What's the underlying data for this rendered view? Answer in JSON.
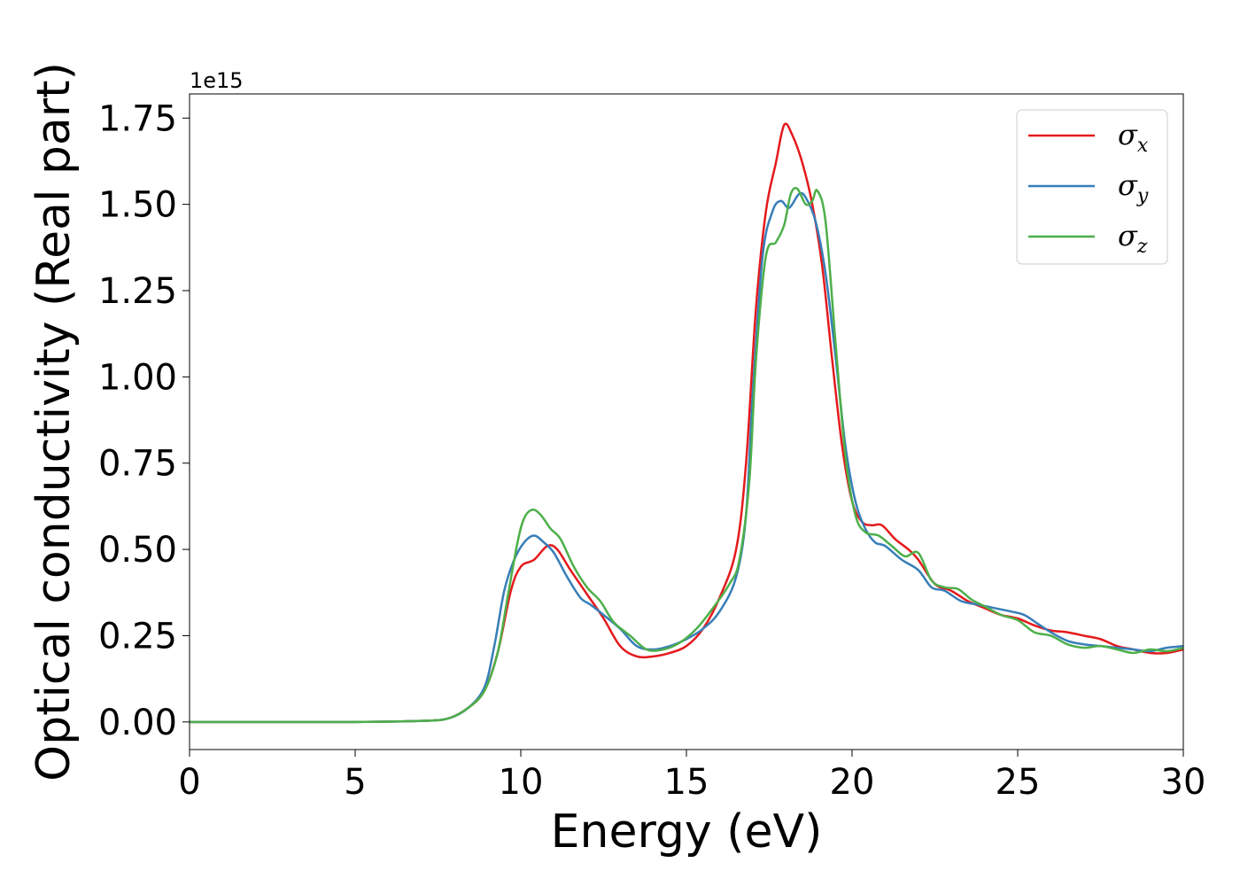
{
  "chart_data": {
    "type": "line",
    "title": "",
    "xlabel": "Energy (eV)",
    "ylabel": "Optical conductivity (Real part)",
    "y_offset_text": "1e15",
    "xlim": [
      0,
      30
    ],
    "ylim": [
      -0.08,
      1.82
    ],
    "x_ticks": [
      0,
      5,
      10,
      15,
      20,
      25,
      30
    ],
    "x_tick_labels": [
      "0",
      "5",
      "10",
      "15",
      "20",
      "25",
      "30"
    ],
    "y_ticks": [
      0,
      0.25,
      0.5,
      0.75,
      1.0,
      1.25,
      1.5,
      1.75
    ],
    "y_tick_labels": [
      "0.00",
      "0.25",
      "0.50",
      "0.75",
      "1.00",
      "1.25",
      "1.50",
      "1.75"
    ],
    "grid": false,
    "legend_position": "top-right",
    "series": [
      {
        "name": "σ",
        "subscript": "x",
        "color": "#e41a1c",
        "points": [
          [
            0,
            0
          ],
          [
            5,
            0
          ],
          [
            7,
            0.003
          ],
          [
            7.8,
            0.01
          ],
          [
            8.4,
            0.04
          ],
          [
            8.9,
            0.09
          ],
          [
            9.3,
            0.2
          ],
          [
            9.7,
            0.38
          ],
          [
            10.0,
            0.45
          ],
          [
            10.4,
            0.47
          ],
          [
            10.8,
            0.51
          ],
          [
            11.1,
            0.5
          ],
          [
            11.5,
            0.44
          ],
          [
            12.0,
            0.37
          ],
          [
            12.5,
            0.3
          ],
          [
            13.0,
            0.22
          ],
          [
            13.5,
            0.19
          ],
          [
            14.0,
            0.19
          ],
          [
            14.5,
            0.2
          ],
          [
            15.0,
            0.22
          ],
          [
            15.5,
            0.27
          ],
          [
            16.0,
            0.36
          ],
          [
            16.5,
            0.5
          ],
          [
            16.8,
            0.75
          ],
          [
            17.1,
            1.2
          ],
          [
            17.4,
            1.48
          ],
          [
            17.7,
            1.62
          ],
          [
            17.95,
            1.73
          ],
          [
            18.2,
            1.7
          ],
          [
            18.5,
            1.62
          ],
          [
            18.8,
            1.5
          ],
          [
            19.1,
            1.32
          ],
          [
            19.4,
            1.05
          ],
          [
            19.7,
            0.8
          ],
          [
            20.0,
            0.64
          ],
          [
            20.3,
            0.58
          ],
          [
            20.6,
            0.57
          ],
          [
            20.9,
            0.57
          ],
          [
            21.3,
            0.53
          ],
          [
            21.7,
            0.5
          ],
          [
            22.0,
            0.47
          ],
          [
            22.5,
            0.4
          ],
          [
            23.0,
            0.38
          ],
          [
            23.5,
            0.35
          ],
          [
            24.0,
            0.33
          ],
          [
            24.5,
            0.31
          ],
          [
            25.0,
            0.3
          ],
          [
            25.5,
            0.28
          ],
          [
            26.0,
            0.265
          ],
          [
            26.5,
            0.26
          ],
          [
            27.0,
            0.25
          ],
          [
            27.5,
            0.24
          ],
          [
            28.0,
            0.22
          ],
          [
            28.5,
            0.21
          ],
          [
            29.0,
            0.2
          ],
          [
            29.5,
            0.2
          ],
          [
            30.0,
            0.21
          ]
        ]
      },
      {
        "name": "σ",
        "subscript": "y",
        "color": "#377eb8",
        "points": [
          [
            0,
            0
          ],
          [
            5,
            0
          ],
          [
            7,
            0.003
          ],
          [
            7.8,
            0.01
          ],
          [
            8.4,
            0.04
          ],
          [
            8.9,
            0.1
          ],
          [
            9.2,
            0.22
          ],
          [
            9.5,
            0.38
          ],
          [
            9.8,
            0.47
          ],
          [
            10.1,
            0.52
          ],
          [
            10.4,
            0.54
          ],
          [
            10.7,
            0.52
          ],
          [
            11.0,
            0.49
          ],
          [
            11.4,
            0.42
          ],
          [
            11.8,
            0.36
          ],
          [
            12.1,
            0.34
          ],
          [
            12.5,
            0.31
          ],
          [
            13.0,
            0.27
          ],
          [
            13.5,
            0.22
          ],
          [
            14.0,
            0.21
          ],
          [
            14.5,
            0.22
          ],
          [
            15.0,
            0.24
          ],
          [
            15.5,
            0.27
          ],
          [
            16.0,
            0.32
          ],
          [
            16.5,
            0.42
          ],
          [
            16.8,
            0.6
          ],
          [
            17.0,
            0.95
          ],
          [
            17.3,
            1.35
          ],
          [
            17.6,
            1.48
          ],
          [
            17.85,
            1.51
          ],
          [
            18.1,
            1.49
          ],
          [
            18.4,
            1.53
          ],
          [
            18.6,
            1.52
          ],
          [
            18.9,
            1.45
          ],
          [
            19.2,
            1.3
          ],
          [
            19.5,
            1.06
          ],
          [
            19.8,
            0.8
          ],
          [
            20.1,
            0.64
          ],
          [
            20.4,
            0.56
          ],
          [
            20.7,
            0.52
          ],
          [
            21.0,
            0.51
          ],
          [
            21.5,
            0.47
          ],
          [
            22.0,
            0.44
          ],
          [
            22.4,
            0.39
          ],
          [
            22.8,
            0.38
          ],
          [
            23.3,
            0.35
          ],
          [
            23.8,
            0.34
          ],
          [
            24.3,
            0.33
          ],
          [
            24.8,
            0.32
          ],
          [
            25.2,
            0.31
          ],
          [
            25.6,
            0.285
          ],
          [
            26.0,
            0.26
          ],
          [
            26.5,
            0.235
          ],
          [
            27.0,
            0.225
          ],
          [
            27.5,
            0.22
          ],
          [
            28.0,
            0.215
          ],
          [
            28.5,
            0.21
          ],
          [
            29.0,
            0.205
          ],
          [
            29.5,
            0.215
          ],
          [
            30.0,
            0.22
          ]
        ]
      },
      {
        "name": "σ",
        "subscript": "z",
        "color": "#4daf4a",
        "points": [
          [
            0,
            0
          ],
          [
            5,
            0
          ],
          [
            7,
            0.003
          ],
          [
            7.8,
            0.01
          ],
          [
            8.4,
            0.04
          ],
          [
            8.9,
            0.09
          ],
          [
            9.3,
            0.2
          ],
          [
            9.6,
            0.36
          ],
          [
            9.9,
            0.52
          ],
          [
            10.1,
            0.59
          ],
          [
            10.35,
            0.615
          ],
          [
            10.6,
            0.6
          ],
          [
            10.9,
            0.56
          ],
          [
            11.2,
            0.53
          ],
          [
            11.6,
            0.45
          ],
          [
            12.0,
            0.39
          ],
          [
            12.4,
            0.35
          ],
          [
            12.8,
            0.29
          ],
          [
            13.3,
            0.25
          ],
          [
            13.8,
            0.21
          ],
          [
            14.3,
            0.21
          ],
          [
            14.8,
            0.23
          ],
          [
            15.3,
            0.27
          ],
          [
            15.8,
            0.33
          ],
          [
            16.3,
            0.4
          ],
          [
            16.6,
            0.47
          ],
          [
            16.9,
            0.7
          ],
          [
            17.1,
            1.05
          ],
          [
            17.4,
            1.35
          ],
          [
            17.7,
            1.39
          ],
          [
            17.95,
            1.44
          ],
          [
            18.15,
            1.53
          ],
          [
            18.35,
            1.545
          ],
          [
            18.6,
            1.5
          ],
          [
            18.8,
            1.51
          ],
          [
            18.95,
            1.54
          ],
          [
            19.2,
            1.45
          ],
          [
            19.5,
            1.1
          ],
          [
            19.8,
            0.77
          ],
          [
            20.1,
            0.6
          ],
          [
            20.4,
            0.55
          ],
          [
            20.8,
            0.54
          ],
          [
            21.2,
            0.51
          ],
          [
            21.6,
            0.48
          ],
          [
            22.0,
            0.49
          ],
          [
            22.4,
            0.41
          ],
          [
            22.8,
            0.39
          ],
          [
            23.2,
            0.385
          ],
          [
            23.6,
            0.355
          ],
          [
            24.0,
            0.335
          ],
          [
            24.5,
            0.31
          ],
          [
            25.0,
            0.295
          ],
          [
            25.5,
            0.26
          ],
          [
            26.0,
            0.25
          ],
          [
            26.5,
            0.225
          ],
          [
            27.0,
            0.215
          ],
          [
            27.5,
            0.22
          ],
          [
            28.0,
            0.21
          ],
          [
            28.5,
            0.2
          ],
          [
            29.0,
            0.21
          ],
          [
            29.5,
            0.205
          ],
          [
            30.0,
            0.215
          ]
        ]
      }
    ]
  }
}
